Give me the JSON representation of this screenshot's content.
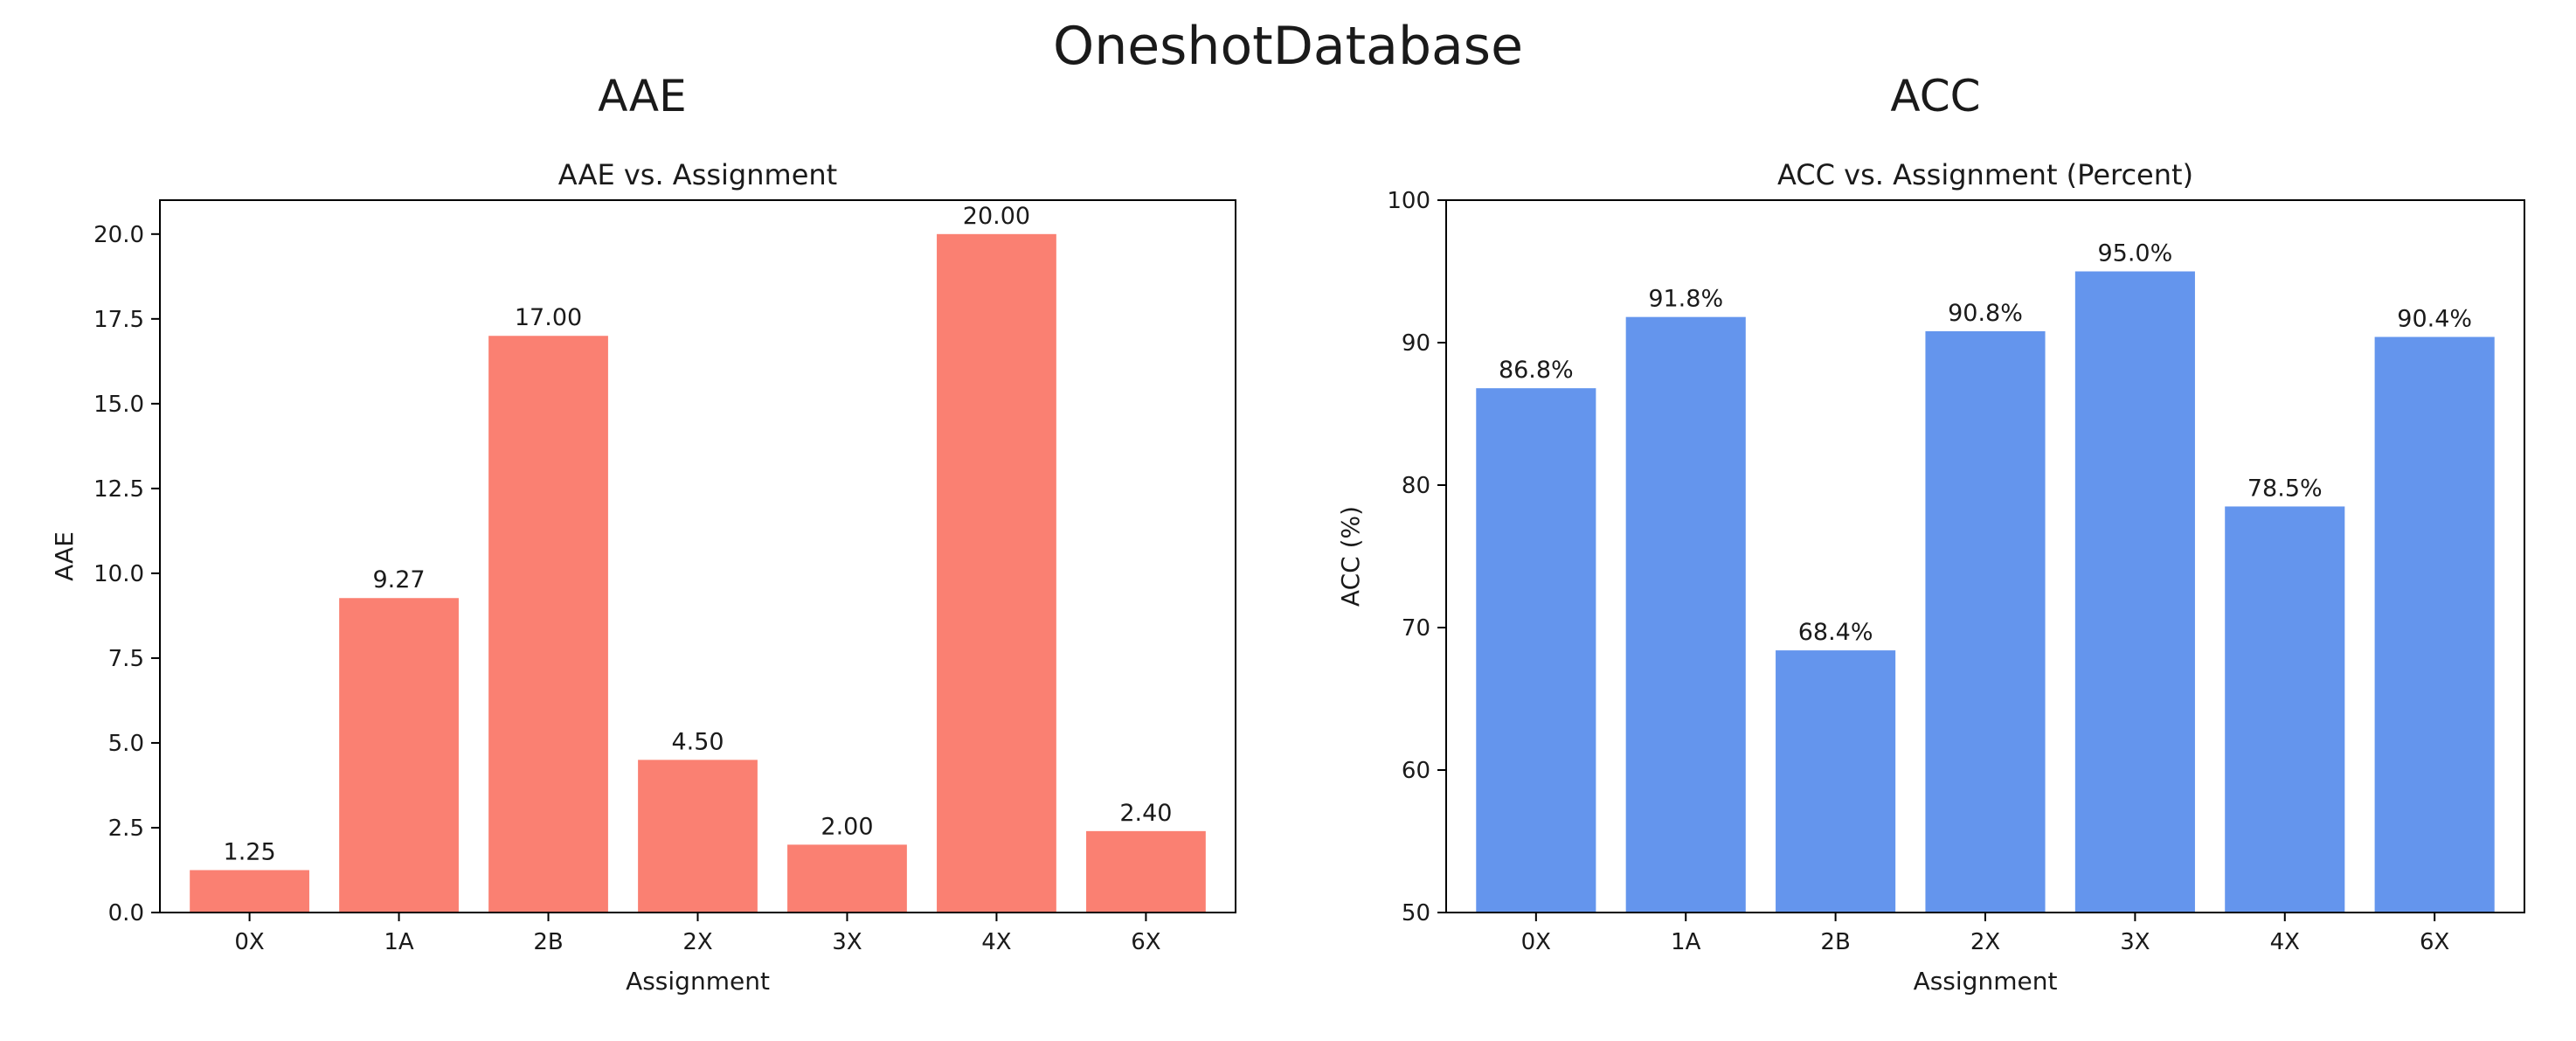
{
  "figure": {
    "suptitle": "OneshotDatabase"
  },
  "chart_data": [
    {
      "type": "bar",
      "panel_title": "AAE",
      "title": "AAE vs. Assignment",
      "xlabel": "Assignment",
      "ylabel": "AAE",
      "categories": [
        "0X",
        "1A",
        "2B",
        "2X",
        "3X",
        "4X",
        "6X"
      ],
      "values": [
        1.25,
        9.27,
        17.0,
        4.5,
        2.0,
        20.0,
        2.4
      ],
      "data_labels": [
        "1.25",
        "9.27",
        "17.00",
        "4.50",
        "2.00",
        "20.00",
        "2.40"
      ],
      "ylim": [
        0,
        21
      ],
      "yticks": [
        0,
        2.5,
        5,
        7.5,
        10,
        12.5,
        15,
        17.5,
        20
      ],
      "ytick_labels": [
        "0.0",
        "2.5",
        "5.0",
        "7.5",
        "10.0",
        "12.5",
        "15.0",
        "17.5",
        "20.0"
      ],
      "grid": false,
      "bar_color": "#fa8072"
    },
    {
      "type": "bar",
      "panel_title": "ACC",
      "title": "ACC vs. Assignment (Percent)",
      "xlabel": "Assignment",
      "ylabel": "ACC (%)",
      "categories": [
        "0X",
        "1A",
        "2B",
        "2X",
        "3X",
        "4X",
        "6X"
      ],
      "values": [
        86.8,
        91.8,
        68.4,
        90.8,
        95.0,
        78.5,
        90.4
      ],
      "data_labels": [
        "86.8%",
        "91.8%",
        "68.4%",
        "90.8%",
        "95.0%",
        "78.5%",
        "90.4%"
      ],
      "ylim": [
        50,
        100
      ],
      "yticks": [
        50,
        60,
        70,
        80,
        90,
        100
      ],
      "ytick_labels": [
        "50",
        "60",
        "70",
        "80",
        "90",
        "100"
      ],
      "grid": false,
      "bar_color": "#6495ed"
    }
  ]
}
